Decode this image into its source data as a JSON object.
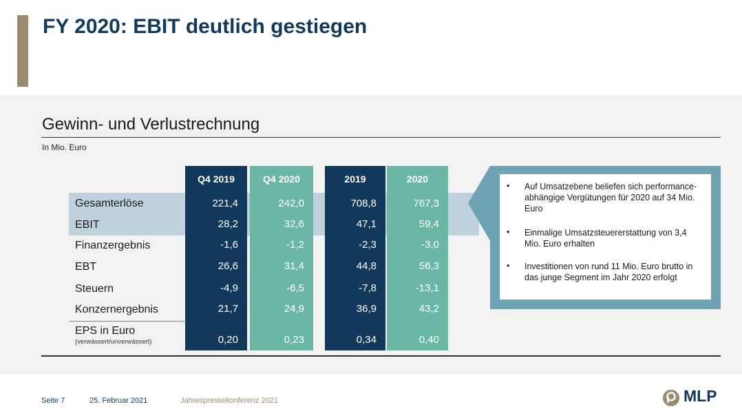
{
  "title": "FY 2020: EBIT deutlich gestiegen",
  "section_title": "Gewinn- und Verlustrechnung",
  "unit": "In Mio. Euro",
  "table": {
    "columns": [
      "Q4 2019",
      "Q4 2020",
      "2019",
      "2020"
    ],
    "rows": [
      {
        "label": "Gesamterlöse",
        "values": [
          "221,4",
          "242,0",
          "708,8",
          "767,3"
        ]
      },
      {
        "label": "EBIT",
        "values": [
          "28,2",
          "32,6",
          "47,1",
          "59,4"
        ]
      },
      {
        "label": "Finanzergebnis",
        "values": [
          "-1,6",
          "-1,2",
          "-2,3",
          "-3,0"
        ]
      },
      {
        "label": "EBT",
        "values": [
          "26,6",
          "31,4",
          "44,8",
          "56,3"
        ]
      },
      {
        "label": "Steuern",
        "values": [
          "-4,9",
          "-6,5",
          "-7,8",
          "-13,1"
        ]
      },
      {
        "label": "Konzernergebnis",
        "values": [
          "21,7",
          "24,9",
          "36,9",
          "43,2"
        ]
      },
      {
        "label": "EPS in Euro",
        "values": [
          "0,20",
          "0,23",
          "0,34",
          "0,40"
        ]
      }
    ],
    "eps_sub": "(verwässert/unverwässert)"
  },
  "callout": {
    "bullet_char": "•",
    "bullets": [
      "Auf Umsatzebene beliefen sich performance-abhängige Vergütungen für 2020 auf 34 Mio. Euro",
      "Einmalige Umsatzsteuererstattung von 3,4 Mio. Euro erhalten",
      "Investitionen von rund 11 Mio. Euro brutto in das junge Segment im Jahr 2020 erfolgt"
    ]
  },
  "footer": {
    "page": "Seite 7",
    "date": "25. Februar 2021",
    "event": "Jahrespressekonferenz 2021"
  },
  "logo": {
    "text": "MLP"
  },
  "colors": {
    "navy": "#12395b",
    "teal": "#6bb7a5",
    "accent": "#9b8a6e",
    "callout_frame": "#6ea3b3",
    "footer_date": "#12395b",
    "footer_event": "#9b8a6e",
    "logo_mark": "#9b8a6e"
  }
}
